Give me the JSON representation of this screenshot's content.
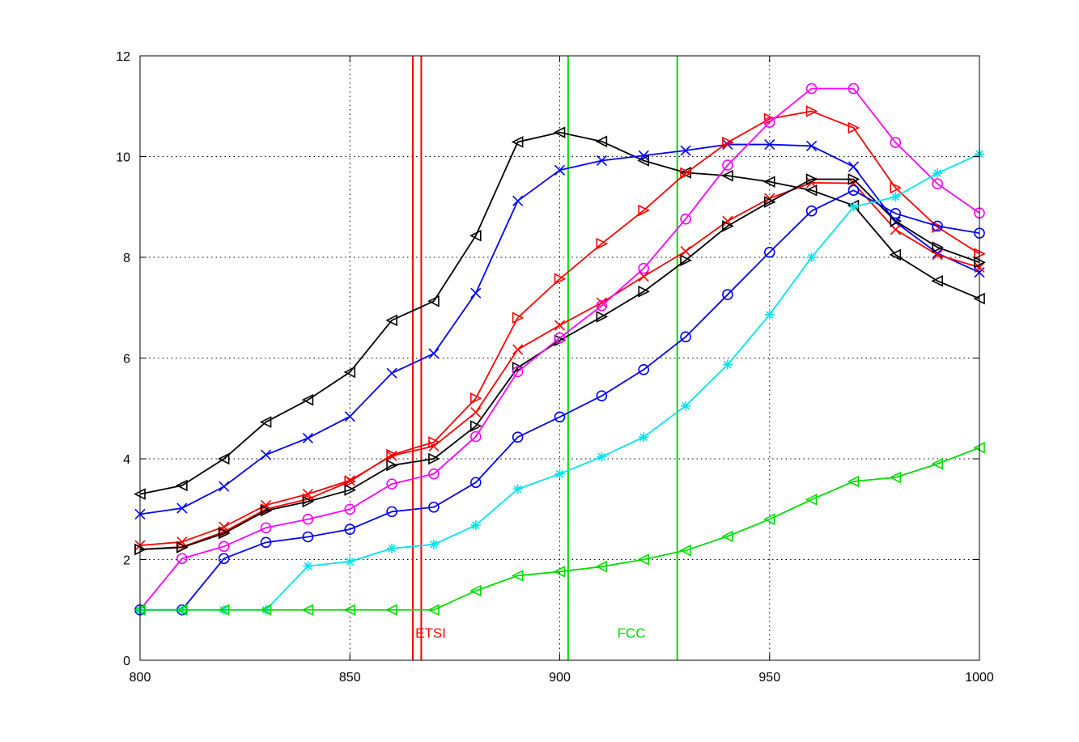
{
  "chart_data": {
    "type": "line",
    "title": "",
    "xlabel": "",
    "ylabel": "",
    "xlim": [
      800,
      1000
    ],
    "ylim": [
      0,
      12
    ],
    "xticks": [
      800,
      850,
      900,
      950,
      1000
    ],
    "yticks": [
      0,
      2,
      4,
      6,
      8,
      10,
      12
    ],
    "grid": true,
    "x": [
      800,
      810,
      820,
      830,
      840,
      850,
      860,
      870,
      880,
      890,
      900,
      910,
      920,
      930,
      940,
      950,
      960,
      970,
      980,
      990,
      1000
    ],
    "series": [
      {
        "color": "#000000",
        "marker": "triangle-left",
        "values": [
          3.3,
          3.47,
          4.0,
          4.73,
          5.17,
          5.72,
          6.75,
          7.13,
          8.43,
          10.29,
          10.48,
          10.3,
          9.92,
          9.68,
          9.62,
          9.5,
          9.33,
          9.03,
          8.05,
          7.53,
          7.18
        ]
      },
      {
        "color": "#0000ff",
        "marker": "x",
        "values": [
          2.9,
          3.02,
          3.45,
          4.08,
          4.41,
          4.84,
          5.7,
          6.09,
          7.29,
          9.12,
          9.73,
          9.92,
          10.02,
          10.12,
          10.24,
          10.24,
          10.21,
          9.8,
          8.7,
          8.08,
          7.7
        ]
      },
      {
        "color": "#ff0000",
        "marker": "triangle-right",
        "values": [
          2.2,
          2.25,
          2.55,
          3.0,
          3.2,
          3.55,
          4.08,
          4.33,
          5.2,
          6.8,
          7.57,
          8.27,
          8.93,
          9.67,
          10.28,
          10.75,
          10.9,
          10.57,
          9.38,
          8.6,
          8.07
        ]
      },
      {
        "color": "#ff0000",
        "marker": "x",
        "values": [
          2.28,
          2.35,
          2.65,
          3.08,
          3.3,
          3.57,
          4.06,
          4.25,
          4.92,
          6.17,
          6.65,
          7.1,
          7.62,
          8.12,
          8.72,
          9.17,
          9.48,
          9.47,
          8.55,
          8.05,
          7.8
        ]
      },
      {
        "color": "#000000",
        "marker": "triangle-right",
        "values": [
          2.2,
          2.24,
          2.52,
          2.97,
          3.15,
          3.38,
          3.87,
          4.0,
          4.65,
          5.81,
          6.35,
          6.82,
          7.32,
          7.94,
          8.62,
          9.1,
          9.55,
          9.55,
          8.72,
          8.2,
          7.9
        ]
      },
      {
        "color": "#ff00ff",
        "marker": "circle",
        "values": [
          1.0,
          2.02,
          2.26,
          2.63,
          2.8,
          3.0,
          3.5,
          3.7,
          4.44,
          5.73,
          6.4,
          7.04,
          7.78,
          8.76,
          9.83,
          10.68,
          11.35,
          11.35,
          10.28,
          9.46,
          8.88
        ]
      },
      {
        "color": "#0000ff",
        "marker": "circle",
        "values": [
          1.0,
          1.0,
          2.02,
          2.34,
          2.45,
          2.6,
          2.95,
          3.04,
          3.53,
          4.43,
          4.83,
          5.25,
          5.77,
          6.42,
          7.26,
          8.1,
          8.92,
          9.33,
          8.87,
          8.62,
          8.48
        ]
      },
      {
        "color": "#00e5ee",
        "marker": "star",
        "values": [
          1.0,
          1.0,
          1.0,
          1.0,
          1.87,
          1.96,
          2.22,
          2.3,
          2.68,
          3.4,
          3.7,
          4.04,
          4.43,
          5.05,
          5.87,
          6.86,
          8.0,
          9.0,
          9.2,
          9.67,
          10.05
        ]
      },
      {
        "color": "#00dd00",
        "marker": "triangle-left",
        "values": [
          1.0,
          1.0,
          1.0,
          1.0,
          1.0,
          1.0,
          1.0,
          1.0,
          1.38,
          1.68,
          1.76,
          1.86,
          2.0,
          2.18,
          2.46,
          2.8,
          3.19,
          3.55,
          3.63,
          3.9,
          4.22
        ]
      }
    ],
    "annotations": [
      {
        "text": "ETSI",
        "color": "#ff0000",
        "lines": [
          865,
          867
        ],
        "x": 865.6,
        "y": 0.45
      },
      {
        "text": "FCC",
        "color": "#00dd00",
        "lines": [
          902,
          928
        ],
        "x": 913.7,
        "y": 0.45
      }
    ]
  }
}
